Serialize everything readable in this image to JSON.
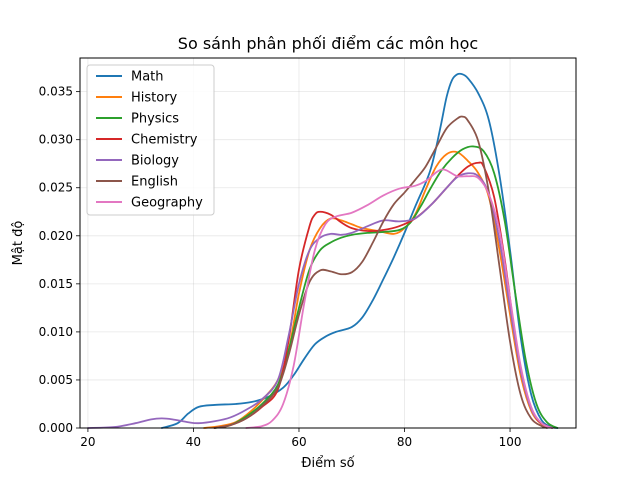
{
  "chart_data": {
    "type": "line",
    "title": "So sánh phân phối điểm các môn học",
    "xlabel": "Điểm số",
    "ylabel": "Mật độ",
    "xlim": [
      18.5,
      112.5
    ],
    "ylim": [
      0,
      0.0385
    ],
    "xticks": [
      20,
      40,
      60,
      80,
      100
    ],
    "yticks": [
      0.0,
      0.005,
      0.01,
      0.015,
      0.02,
      0.025,
      0.03,
      0.035
    ],
    "ytick_labels": [
      "0.000",
      "0.005",
      "0.010",
      "0.015",
      "0.020",
      "0.025",
      "0.030",
      "0.035"
    ],
    "xtick_labels": [
      "20",
      "40",
      "60",
      "80",
      "100"
    ],
    "grid": true,
    "legend_position": "upper-left",
    "series": [
      {
        "name": "Math",
        "color": "#1f77b4",
        "points": [
          [
            34,
            0.0
          ],
          [
            37,
            0.0005
          ],
          [
            39,
            0.0015
          ],
          [
            41,
            0.0022
          ],
          [
            44,
            0.0024
          ],
          [
            48,
            0.0025
          ],
          [
            51,
            0.0027
          ],
          [
            54,
            0.0032
          ],
          [
            57,
            0.0042
          ],
          [
            59,
            0.0055
          ],
          [
            61,
            0.0072
          ],
          [
            63,
            0.0087
          ],
          [
            65,
            0.0095
          ],
          [
            67,
            0.01
          ],
          [
            70,
            0.0105
          ],
          [
            72,
            0.0115
          ],
          [
            74,
            0.0133
          ],
          [
            76,
            0.0155
          ],
          [
            78,
            0.0178
          ],
          [
            80,
            0.0203
          ],
          [
            82,
            0.023
          ],
          [
            84,
            0.0255
          ],
          [
            85,
            0.027
          ],
          [
            86,
            0.0292
          ],
          [
            87,
            0.0318
          ],
          [
            88,
            0.0345
          ],
          [
            89,
            0.0362
          ],
          [
            90,
            0.0368
          ],
          [
            91,
            0.0368
          ],
          [
            92,
            0.0364
          ],
          [
            94,
            0.0348
          ],
          [
            96,
            0.032
          ],
          [
            98,
            0.0263
          ],
          [
            100,
            0.0185
          ],
          [
            102,
            0.0095
          ],
          [
            104,
            0.0035
          ],
          [
            106,
            0.0008
          ],
          [
            108,
            0.0001
          ],
          [
            109,
            0.0
          ]
        ]
      },
      {
        "name": "History",
        "color": "#ff7f0e",
        "points": [
          [
            42,
            0.0
          ],
          [
            45,
            0.0002
          ],
          [
            48,
            0.0006
          ],
          [
            51,
            0.0018
          ],
          [
            54,
            0.0035
          ],
          [
            56,
            0.005
          ],
          [
            58,
            0.008
          ],
          [
            60,
            0.014
          ],
          [
            62,
            0.0185
          ],
          [
            64,
            0.0208
          ],
          [
            66,
            0.0218
          ],
          [
            68,
            0.0216
          ],
          [
            70,
            0.0212
          ],
          [
            72,
            0.0208
          ],
          [
            75,
            0.0205
          ],
          [
            78,
            0.0202
          ],
          [
            80,
            0.0208
          ],
          [
            82,
            0.0222
          ],
          [
            84,
            0.0248
          ],
          [
            86,
            0.0272
          ],
          [
            88,
            0.0285
          ],
          [
            90,
            0.0287
          ],
          [
            92,
            0.0278
          ],
          [
            94,
            0.0265
          ],
          [
            96,
            0.024
          ],
          [
            98,
            0.0185
          ],
          [
            100,
            0.0118
          ],
          [
            102,
            0.0055
          ],
          [
            104,
            0.0018
          ],
          [
            106,
            0.0004
          ],
          [
            108,
            0.0
          ]
        ]
      },
      {
        "name": "Physics",
        "color": "#2ca02c",
        "points": [
          [
            44,
            0.0
          ],
          [
            47,
            0.0003
          ],
          [
            50,
            0.0012
          ],
          [
            53,
            0.0025
          ],
          [
            56,
            0.0045
          ],
          [
            58,
            0.008
          ],
          [
            60,
            0.0125
          ],
          [
            62,
            0.0165
          ],
          [
            64,
            0.0185
          ],
          [
            66,
            0.0193
          ],
          [
            68,
            0.0198
          ],
          [
            70,
            0.0201
          ],
          [
            73,
            0.0203
          ],
          [
            76,
            0.0204
          ],
          [
            79,
            0.0206
          ],
          [
            81,
            0.0213
          ],
          [
            83,
            0.023
          ],
          [
            85,
            0.025
          ],
          [
            87,
            0.0268
          ],
          [
            89,
            0.0281
          ],
          [
            91,
            0.029
          ],
          [
            93,
            0.0293
          ],
          [
            95,
            0.0288
          ],
          [
            97,
            0.0265
          ],
          [
            99,
            0.0215
          ],
          [
            101,
            0.014
          ],
          [
            103,
            0.007
          ],
          [
            105,
            0.0025
          ],
          [
            107,
            0.0006
          ],
          [
            109,
            0.0
          ]
        ]
      },
      {
        "name": "Chemistry",
        "color": "#d62728",
        "points": [
          [
            44,
            0.0
          ],
          [
            47,
            0.0003
          ],
          [
            50,
            0.001
          ],
          [
            53,
            0.0022
          ],
          [
            56,
            0.004
          ],
          [
            58,
            0.009
          ],
          [
            60,
            0.0165
          ],
          [
            62,
            0.021
          ],
          [
            63,
            0.0222
          ],
          [
            64,
            0.0225
          ],
          [
            66,
            0.0222
          ],
          [
            68,
            0.0214
          ],
          [
            70,
            0.0208
          ],
          [
            73,
            0.0205
          ],
          [
            76,
            0.0206
          ],
          [
            79,
            0.021
          ],
          [
            82,
            0.0218
          ],
          [
            85,
            0.0232
          ],
          [
            88,
            0.025
          ],
          [
            90,
            0.0262
          ],
          [
            92,
            0.0272
          ],
          [
            94,
            0.0276
          ],
          [
            95,
            0.0272
          ],
          [
            97,
            0.024
          ],
          [
            99,
            0.0175
          ],
          [
            101,
            0.0095
          ],
          [
            103,
            0.0038
          ],
          [
            105,
            0.001
          ],
          [
            107,
            0.0002
          ],
          [
            108,
            0.0
          ]
        ]
      },
      {
        "name": "Biology",
        "color": "#9467bd",
        "points": [
          [
            20,
            0.0
          ],
          [
            25,
            0.0001
          ],
          [
            29,
            0.0005
          ],
          [
            32,
            0.0009
          ],
          [
            34,
            0.001
          ],
          [
            36,
            0.0009
          ],
          [
            39,
            0.0006
          ],
          [
            41,
            0.0005
          ],
          [
            44,
            0.0007
          ],
          [
            47,
            0.0011
          ],
          [
            50,
            0.0019
          ],
          [
            53,
            0.003
          ],
          [
            56,
            0.005
          ],
          [
            58,
            0.0095
          ],
          [
            60,
            0.015
          ],
          [
            62,
            0.0185
          ],
          [
            64,
            0.0198
          ],
          [
            66,
            0.0202
          ],
          [
            68,
            0.0201
          ],
          [
            70,
            0.0203
          ],
          [
            73,
            0.021
          ],
          [
            76,
            0.0216
          ],
          [
            79,
            0.0215
          ],
          [
            82,
            0.0218
          ],
          [
            85,
            0.0232
          ],
          [
            88,
            0.025
          ],
          [
            90,
            0.0261
          ],
          [
            92,
            0.0265
          ],
          [
            94,
            0.0262
          ],
          [
            96,
            0.0243
          ],
          [
            98,
            0.0195
          ],
          [
            100,
            0.0125
          ],
          [
            102,
            0.006
          ],
          [
            104,
            0.002
          ],
          [
            106,
            0.0005
          ],
          [
            108,
            0.0
          ]
        ]
      },
      {
        "name": "English",
        "color": "#8c564b",
        "points": [
          [
            44,
            0.0
          ],
          [
            47,
            0.0003
          ],
          [
            50,
            0.001
          ],
          [
            53,
            0.0023
          ],
          [
            56,
            0.0042
          ],
          [
            58,
            0.0075
          ],
          [
            60,
            0.0118
          ],
          [
            62,
            0.0152
          ],
          [
            64,
            0.0164
          ],
          [
            66,
            0.0163
          ],
          [
            68,
            0.016
          ],
          [
            70,
            0.0162
          ],
          [
            72,
            0.0173
          ],
          [
            74,
            0.0193
          ],
          [
            76,
            0.0215
          ],
          [
            78,
            0.0233
          ],
          [
            80,
            0.0245
          ],
          [
            82,
            0.0258
          ],
          [
            84,
            0.0272
          ],
          [
            86,
            0.0292
          ],
          [
            88,
            0.0312
          ],
          [
            90,
            0.0322
          ],
          [
            91,
            0.0324
          ],
          [
            92,
            0.032
          ],
          [
            94,
            0.0298
          ],
          [
            96,
            0.0245
          ],
          [
            98,
            0.0168
          ],
          [
            100,
            0.009
          ],
          [
            102,
            0.0035
          ],
          [
            104,
            0.001
          ],
          [
            106,
            0.0002
          ],
          [
            107,
            0.0
          ]
        ]
      },
      {
        "name": "Geography",
        "color": "#e377c2",
        "points": [
          [
            50,
            0.0
          ],
          [
            53,
            0.0002
          ],
          [
            55,
            0.0008
          ],
          [
            57,
            0.0025
          ],
          [
            59,
            0.0065
          ],
          [
            61,
            0.013
          ],
          [
            63,
            0.0185
          ],
          [
            65,
            0.0212
          ],
          [
            67,
            0.022
          ],
          [
            70,
            0.0224
          ],
          [
            73,
            0.0232
          ],
          [
            76,
            0.0242
          ],
          [
            79,
            0.0249
          ],
          [
            82,
            0.0252
          ],
          [
            84,
            0.0257
          ],
          [
            86,
            0.0266
          ],
          [
            87,
            0.0269
          ],
          [
            88,
            0.0268
          ],
          [
            90,
            0.0262
          ],
          [
            92,
            0.0262
          ],
          [
            94,
            0.026
          ],
          [
            96,
            0.0243
          ],
          [
            98,
            0.0205
          ],
          [
            100,
            0.0135
          ],
          [
            102,
            0.0065
          ],
          [
            104,
            0.0022
          ],
          [
            106,
            0.0005
          ],
          [
            108,
            0.0
          ]
        ]
      }
    ]
  }
}
